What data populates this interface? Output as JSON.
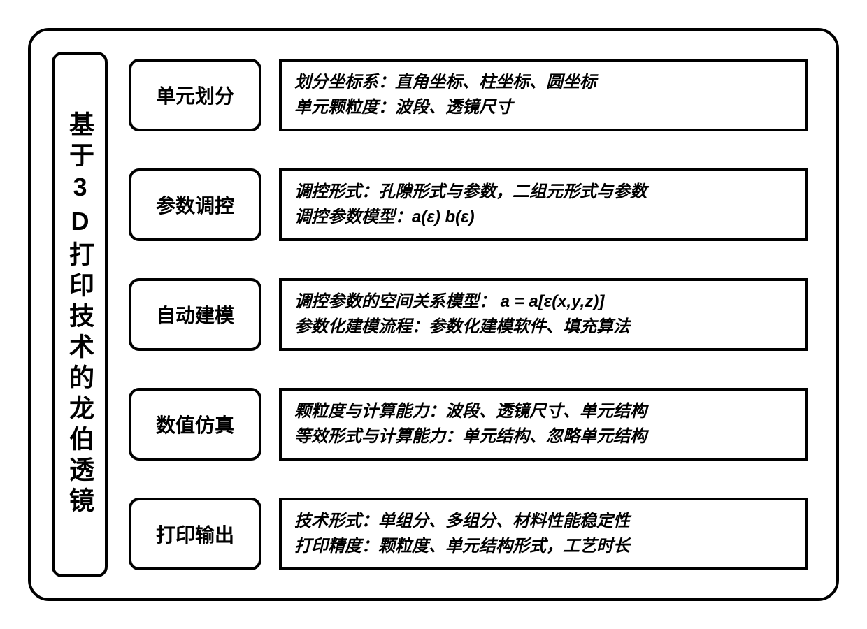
{
  "diagram": {
    "title": "基于3D打印技术的龙伯透镜",
    "background_color": "#ffffff",
    "border_color": "#000000",
    "border_width": 4,
    "border_radius": 30,
    "title_fontsize": 36,
    "label_fontsize": 28,
    "content_fontsize": 24,
    "font_weight": "900",
    "content_font_style": "italic",
    "rows": [
      {
        "label": "单元划分",
        "lines": [
          "划分坐标系：直角坐标、柱坐标、圆坐标",
          "单元颗粒度：波段、透镜尺寸"
        ]
      },
      {
        "label": "参数调控",
        "lines": [
          "调控形式：孔隙形式与参数，二组元形式与参数",
          "调控参数模型：a(ε)  b(ε)"
        ]
      },
      {
        "label": "自动建模",
        "lines": [
          "调控参数的空间关系模型：   a = a[ε(x,y,z)]",
          "参数化建模流程：参数化建模软件、填充算法"
        ]
      },
      {
        "label": "数值仿真",
        "lines": [
          "颗粒度与计算能力：波段、透镜尺寸、单元结构",
          "等效形式与计算能力：单元结构、忽略单元结构"
        ]
      },
      {
        "label": "打印输出",
        "lines": [
          "技术形式：单组分、多组分、材料性能稳定性",
          "打印精度：颗粒度、单元结构形式，工艺时长"
        ]
      }
    ]
  }
}
